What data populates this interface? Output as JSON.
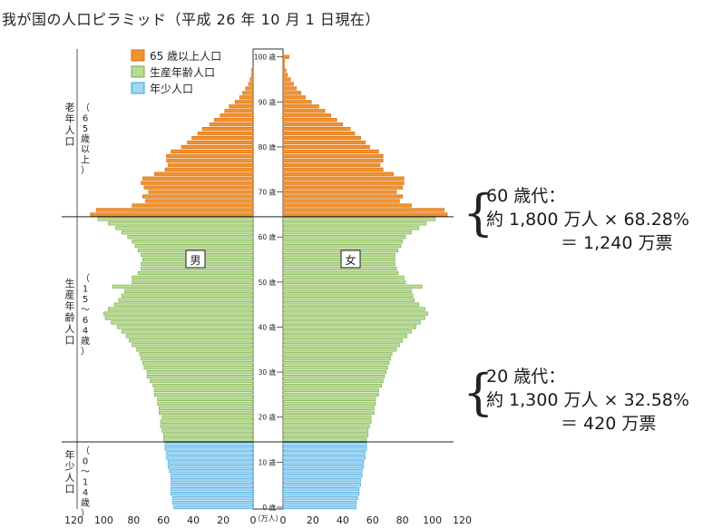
{
  "title": "我が国の人口ピラミッド（平成 26 年 10 月 1 日現在）",
  "legend": [
    {
      "label": "65 歳以上人口",
      "color": "#f2922e",
      "edge": "#d46e14"
    },
    {
      "label": "生産年齢人口",
      "color": "#b9dc92",
      "edge": "#76a84a"
    },
    {
      "label": "年少人口",
      "color": "#9fd6f5",
      "edge": "#3aa0dc"
    }
  ],
  "group_labels": {
    "elderly": {
      "name": "老年人口",
      "range": "（65歳以上）"
    },
    "working": {
      "name": "生産年齢人口",
      "range": "（15～64歳）"
    },
    "young": {
      "name": "年少人口",
      "range": "（0～14歳）"
    }
  },
  "sex_labels": {
    "male": "男",
    "female": "女"
  },
  "age_tick_suffix": "歳",
  "x_unit": "（万人）",
  "annotations": {
    "sixties": {
      "line1": "60 歳代：",
      "line2": "約 1,800 万人 × 68.28%",
      "line3": "＝ 1,240 万票"
    },
    "twenties": {
      "line1": "20 歳代：",
      "line2": "約 1,300 万人 × 32.58%",
      "line3": "＝ 420 万票"
    }
  },
  "chart_data": {
    "type": "bar",
    "orientation": "horizontal",
    "title": "我が国の人口ピラミッド（平成 26 年 10 月 1 日現在）",
    "ages": [
      0,
      1,
      2,
      3,
      4,
      5,
      6,
      7,
      8,
      9,
      10,
      11,
      12,
      13,
      14,
      15,
      16,
      17,
      18,
      19,
      20,
      21,
      22,
      23,
      24,
      25,
      26,
      27,
      28,
      29,
      30,
      31,
      32,
      33,
      34,
      35,
      36,
      37,
      38,
      39,
      40,
      41,
      42,
      43,
      44,
      45,
      46,
      47,
      48,
      49,
      50,
      51,
      52,
      53,
      54,
      55,
      56,
      57,
      58,
      59,
      60,
      61,
      62,
      63,
      64,
      65,
      66,
      67,
      68,
      69,
      70,
      71,
      72,
      73,
      74,
      75,
      76,
      77,
      78,
      79,
      80,
      81,
      82,
      83,
      84,
      85,
      86,
      87,
      88,
      89,
      90,
      91,
      92,
      93,
      94,
      95,
      96,
      97,
      98,
      99,
      100
    ],
    "male": [
      53,
      54,
      54,
      55,
      55,
      55,
      55,
      55,
      56,
      57,
      57,
      58,
      58,
      59,
      59,
      60,
      60,
      61,
      62,
      62,
      61,
      63,
      63,
      64,
      64,
      66,
      66,
      67,
      69,
      71,
      71,
      73,
      74,
      75,
      76,
      78,
      81,
      83,
      85,
      88,
      91,
      95,
      99,
      100,
      97,
      93,
      90,
      88,
      86,
      94,
      81,
      81,
      77,
      75,
      75,
      74,
      75,
      77,
      79,
      81,
      84,
      88,
      92,
      97,
      104,
      109,
      105,
      81,
      72,
      74,
      70,
      73,
      75,
      74,
      66,
      59,
      57,
      58,
      58,
      55,
      48,
      44,
      41,
      37,
      34,
      29,
      26,
      22,
      19,
      16,
      12,
      9,
      7,
      5,
      3,
      2,
      1,
      1,
      0,
      0,
      0
    ],
    "female": [
      49,
      49,
      50,
      51,
      51,
      52,
      52,
      53,
      53,
      54,
      54,
      55,
      55,
      56,
      56,
      56,
      57,
      57,
      58,
      59,
      59,
      61,
      61,
      62,
      62,
      64,
      64,
      66,
      67,
      68,
      69,
      70,
      71,
      72,
      73,
      76,
      78,
      80,
      83,
      86,
      89,
      92,
      95,
      97,
      95,
      91,
      88,
      87,
      86,
      93,
      82,
      81,
      77,
      76,
      75,
      75,
      75,
      77,
      79,
      80,
      82,
      86,
      91,
      96,
      102,
      110,
      108,
      86,
      78,
      80,
      76,
      80,
      81,
      81,
      74,
      67,
      65,
      67,
      67,
      64,
      58,
      55,
      52,
      48,
      45,
      40,
      36,
      32,
      28,
      24,
      19,
      15,
      12,
      9,
      7,
      5,
      3,
      2,
      1,
      1,
      4
    ],
    "groups": [
      {
        "name": "年少人口",
        "from": 0,
        "to": 14
      },
      {
        "name": "生産年齢人口",
        "from": 15,
        "to": 64
      },
      {
        "name": "65 歳以上人口",
        "from": 65,
        "to": 100
      }
    ],
    "xlim": [
      0,
      120
    ],
    "xticks": [
      120,
      100,
      80,
      60,
      40,
      20,
      0
    ],
    "yticks": [
      0,
      10,
      20,
      30,
      40,
      50,
      60,
      70,
      80,
      90,
      100
    ],
    "xlabel": "（万人）",
    "legend_position": "top-left"
  }
}
